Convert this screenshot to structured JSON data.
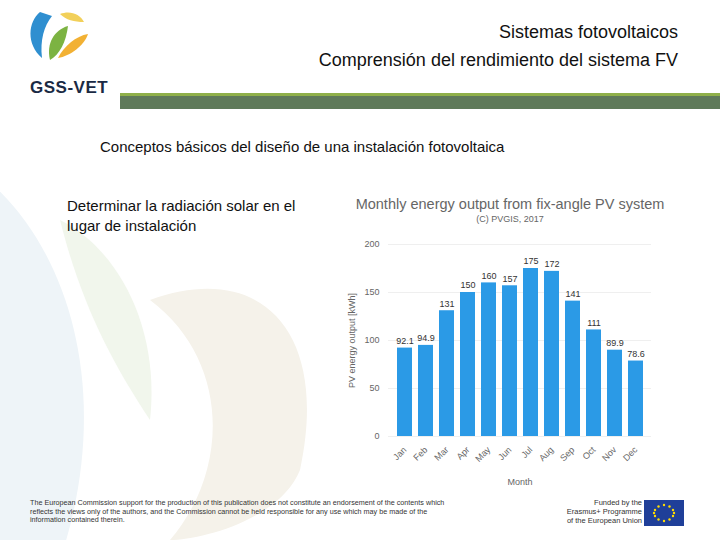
{
  "header": {
    "logo": "GSS-VET",
    "title": [
      "Sistemas fotovoltaicos",
      "Comprensión del rendimiento del sistema FV"
    ]
  },
  "body": {
    "heading": "Conceptos básicos del diseño de una instalación fotovoltaica",
    "text": "Determinar la radiación solar en el lugar de instalación"
  },
  "footer": {
    "disclaimer": "The European Commission support for the production of this publication does not constitute an endorsement of the contents which reflects the views only of the authors, and the Commission cannot be held responsible for any use which may be made of the information contained therein.",
    "funding": [
      "Funded by the",
      "Erasmus+ Programme",
      "of the European Union"
    ]
  },
  "chart_data": {
    "type": "bar",
    "title": "Monthly energy output from fix-angle PV system",
    "subtitle": "(C) PVGIS, 2017",
    "x_label": "Month",
    "y_label": "PV energy output [kWh]",
    "categories": [
      "Jan",
      "Feb",
      "Mar",
      "Apr",
      "May",
      "Jun",
      "Jul",
      "Aug",
      "Sep",
      "Oct",
      "Nov",
      "Dec"
    ],
    "values": [
      92.1,
      94.9,
      131,
      150,
      160,
      157,
      175,
      172,
      141,
      111,
      89.9,
      78.6
    ],
    "color": "#2b9ae6",
    "ylim": [
      0,
      200
    ],
    "yticks": [
      0,
      50,
      100,
      150,
      200
    ],
    "grid": true,
    "data_labels": true
  }
}
